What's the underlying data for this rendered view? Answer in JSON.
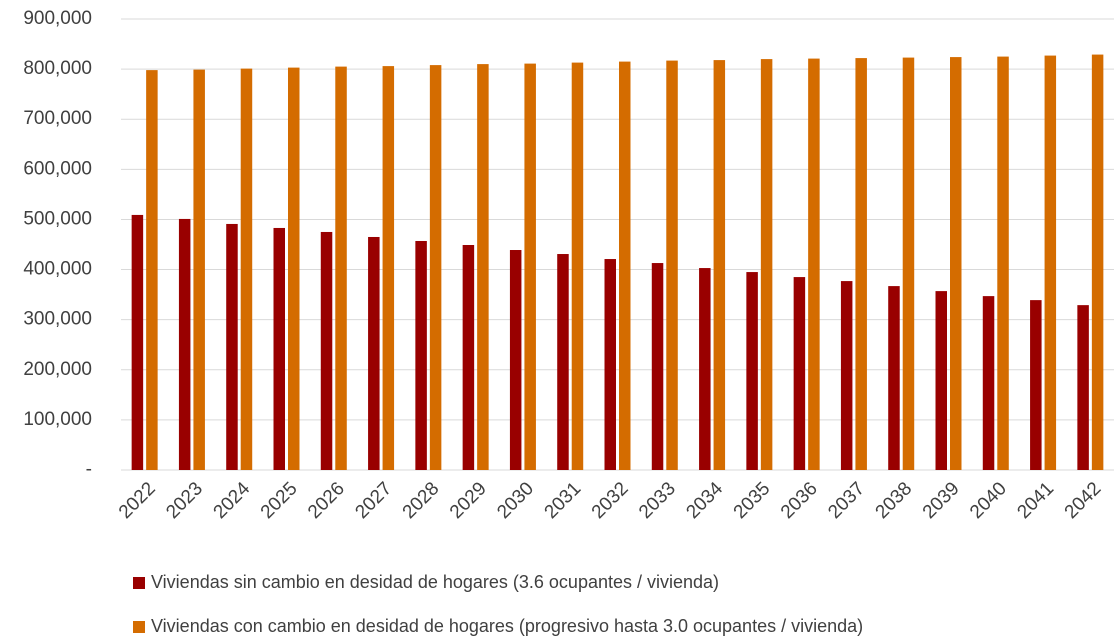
{
  "chart_data": {
    "type": "bar",
    "categories": [
      "2022",
      "2023",
      "2024",
      "2025",
      "2026",
      "2027",
      "2028",
      "2029",
      "2030",
      "2031",
      "2032",
      "2033",
      "2034",
      "2035",
      "2036",
      "2037",
      "2038",
      "2039",
      "2040",
      "2041",
      "2042"
    ],
    "series": [
      {
        "name": "Viviendas sin cambio en desidad de hogares (3.6 ocupantes / vivienda)",
        "color": "#990000",
        "values": [
          509000,
          501000,
          491000,
          483000,
          475000,
          465000,
          457000,
          449000,
          439000,
          431000,
          421000,
          413000,
          403000,
          395000,
          385000,
          377000,
          367000,
          357000,
          347000,
          339000,
          329000
        ]
      },
      {
        "name": "Viviendas con cambio en desidad de hogares (progresivo hasta 3.0 ocupantes / vivienda)",
        "color": "#d46c00",
        "values": [
          798000,
          799000,
          801000,
          803000,
          805000,
          806000,
          808000,
          810000,
          811000,
          813000,
          815000,
          817000,
          818000,
          820000,
          821000,
          822000,
          823000,
          824000,
          825000,
          827000,
          829000
        ]
      }
    ],
    "ylim": [
      0,
      900000
    ],
    "yticks": [
      {
        "value": 0,
        "label": "-"
      },
      {
        "value": 100000,
        "label": "100,000"
      },
      {
        "value": 200000,
        "label": "200,000"
      },
      {
        "value": 300000,
        "label": "300,000"
      },
      {
        "value": 400000,
        "label": "400,000"
      },
      {
        "value": 500000,
        "label": "500,000"
      },
      {
        "value": 600000,
        "label": "600,000"
      },
      {
        "value": 700000,
        "label": "700,000"
      },
      {
        "value": 800000,
        "label": "800,000"
      },
      {
        "value": 900000,
        "label": "900,000"
      }
    ],
    "grid": true,
    "legend": "bottom"
  }
}
